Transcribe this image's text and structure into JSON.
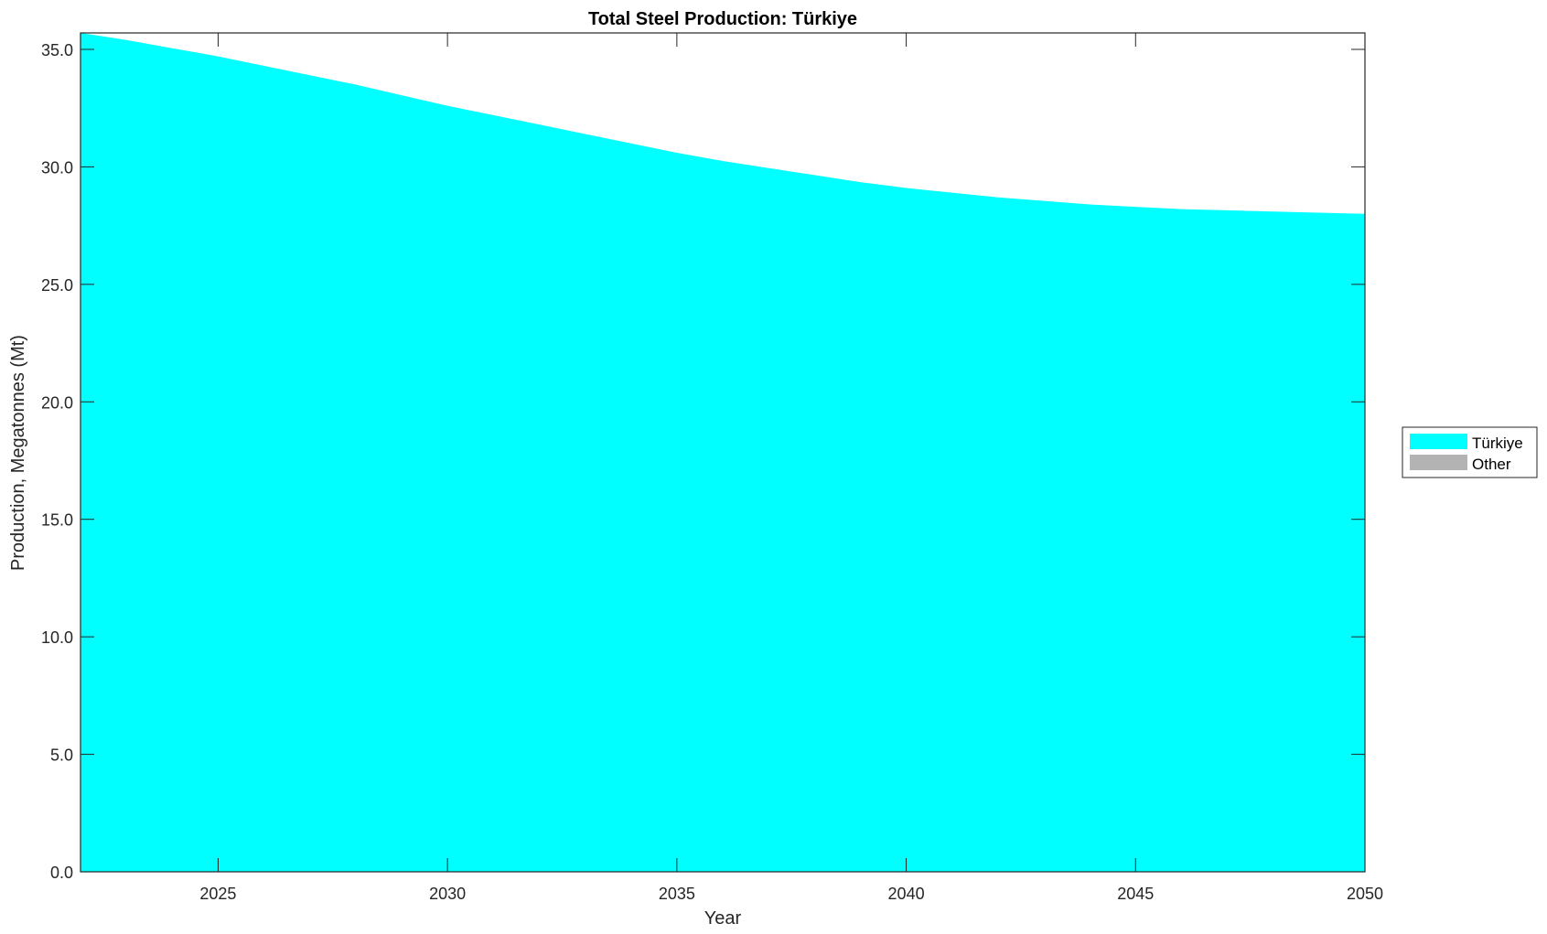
{
  "chart_data": {
    "type": "area",
    "stacked": true,
    "title": "Total Steel Production: Türkiye",
    "xlabel": "Year",
    "ylabel": "Production, Megatonnes (Mt)",
    "xlim": [
      2022,
      2050
    ],
    "ylim": [
      0,
      35.7
    ],
    "x_ticks": [
      "2025",
      "2030",
      "2035",
      "2040",
      "2045",
      "2050"
    ],
    "y_ticks": [
      "0.0",
      "5.0",
      "10.0",
      "15.0",
      "20.0",
      "25.0",
      "30.0",
      "35.0"
    ],
    "grid": false,
    "legend_placement": "right",
    "x": [
      2022,
      2023,
      2024,
      2025,
      2026,
      2027,
      2028,
      2029,
      2030,
      2031,
      2032,
      2033,
      2034,
      2035,
      2036,
      2037,
      2038,
      2039,
      2040,
      2041,
      2042,
      2043,
      2044,
      2045,
      2046,
      2047,
      2048,
      2049,
      2050
    ],
    "series": [
      {
        "name": "Türkiye",
        "color": "#00FFFF",
        "values": [
          35.7,
          35.4,
          35.05,
          34.7,
          34.3,
          33.9,
          33.5,
          33.05,
          32.6,
          32.2,
          31.8,
          31.4,
          31.0,
          30.6,
          30.25,
          29.95,
          29.65,
          29.35,
          29.1,
          28.9,
          28.7,
          28.55,
          28.4,
          28.3,
          28.2,
          28.15,
          28.1,
          28.05,
          28.0
        ]
      },
      {
        "name": "Other",
        "color": "#B3B3B3",
        "values": [
          0,
          0,
          0,
          0,
          0,
          0,
          0,
          0,
          0,
          0,
          0,
          0,
          0,
          0,
          0,
          0,
          0,
          0,
          0,
          0,
          0,
          0,
          0,
          0,
          0,
          0,
          0,
          0,
          0
        ]
      }
    ]
  }
}
